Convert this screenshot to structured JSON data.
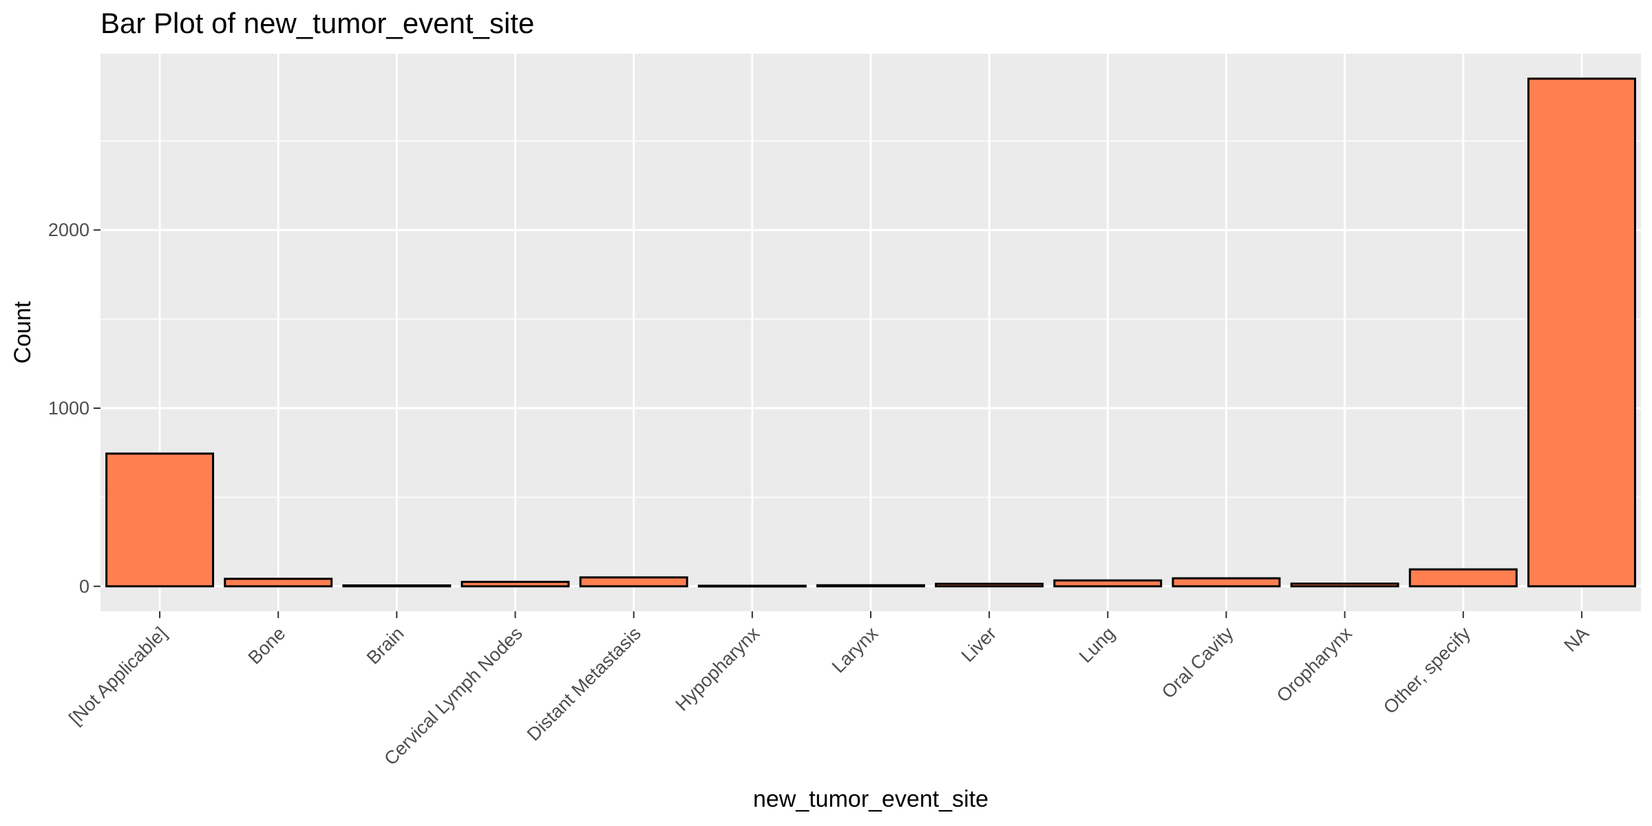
{
  "chart_data": {
    "type": "bar",
    "title": "Bar Plot of new_tumor_event_site",
    "xlabel": "new_tumor_event_site",
    "ylabel": "Count",
    "categories": [
      "[Not Applicable]",
      "Bone",
      "Brain",
      "Cervical Lymph Nodes",
      "Distant Metastasis",
      "Hypopharynx",
      "Larynx",
      "Liver",
      "Lung",
      "Oral Cavity",
      "Oropharynx",
      "Other, specify",
      "NA"
    ],
    "values": [
      745,
      42,
      5,
      25,
      50,
      3,
      6,
      14,
      33,
      45,
      15,
      95,
      2850
    ],
    "ylim": [
      -140,
      2990
    ],
    "y_ticks": [
      0,
      1000,
      2000
    ],
    "y_tick_labels": [
      "0",
      "1000",
      "2000"
    ],
    "grid": true,
    "legend": "none",
    "colors": {
      "bar_fill": "#FF7F50",
      "bar_stroke": "#000000",
      "panel_background": "#EBEBEB",
      "grid": "#FFFFFF"
    }
  }
}
